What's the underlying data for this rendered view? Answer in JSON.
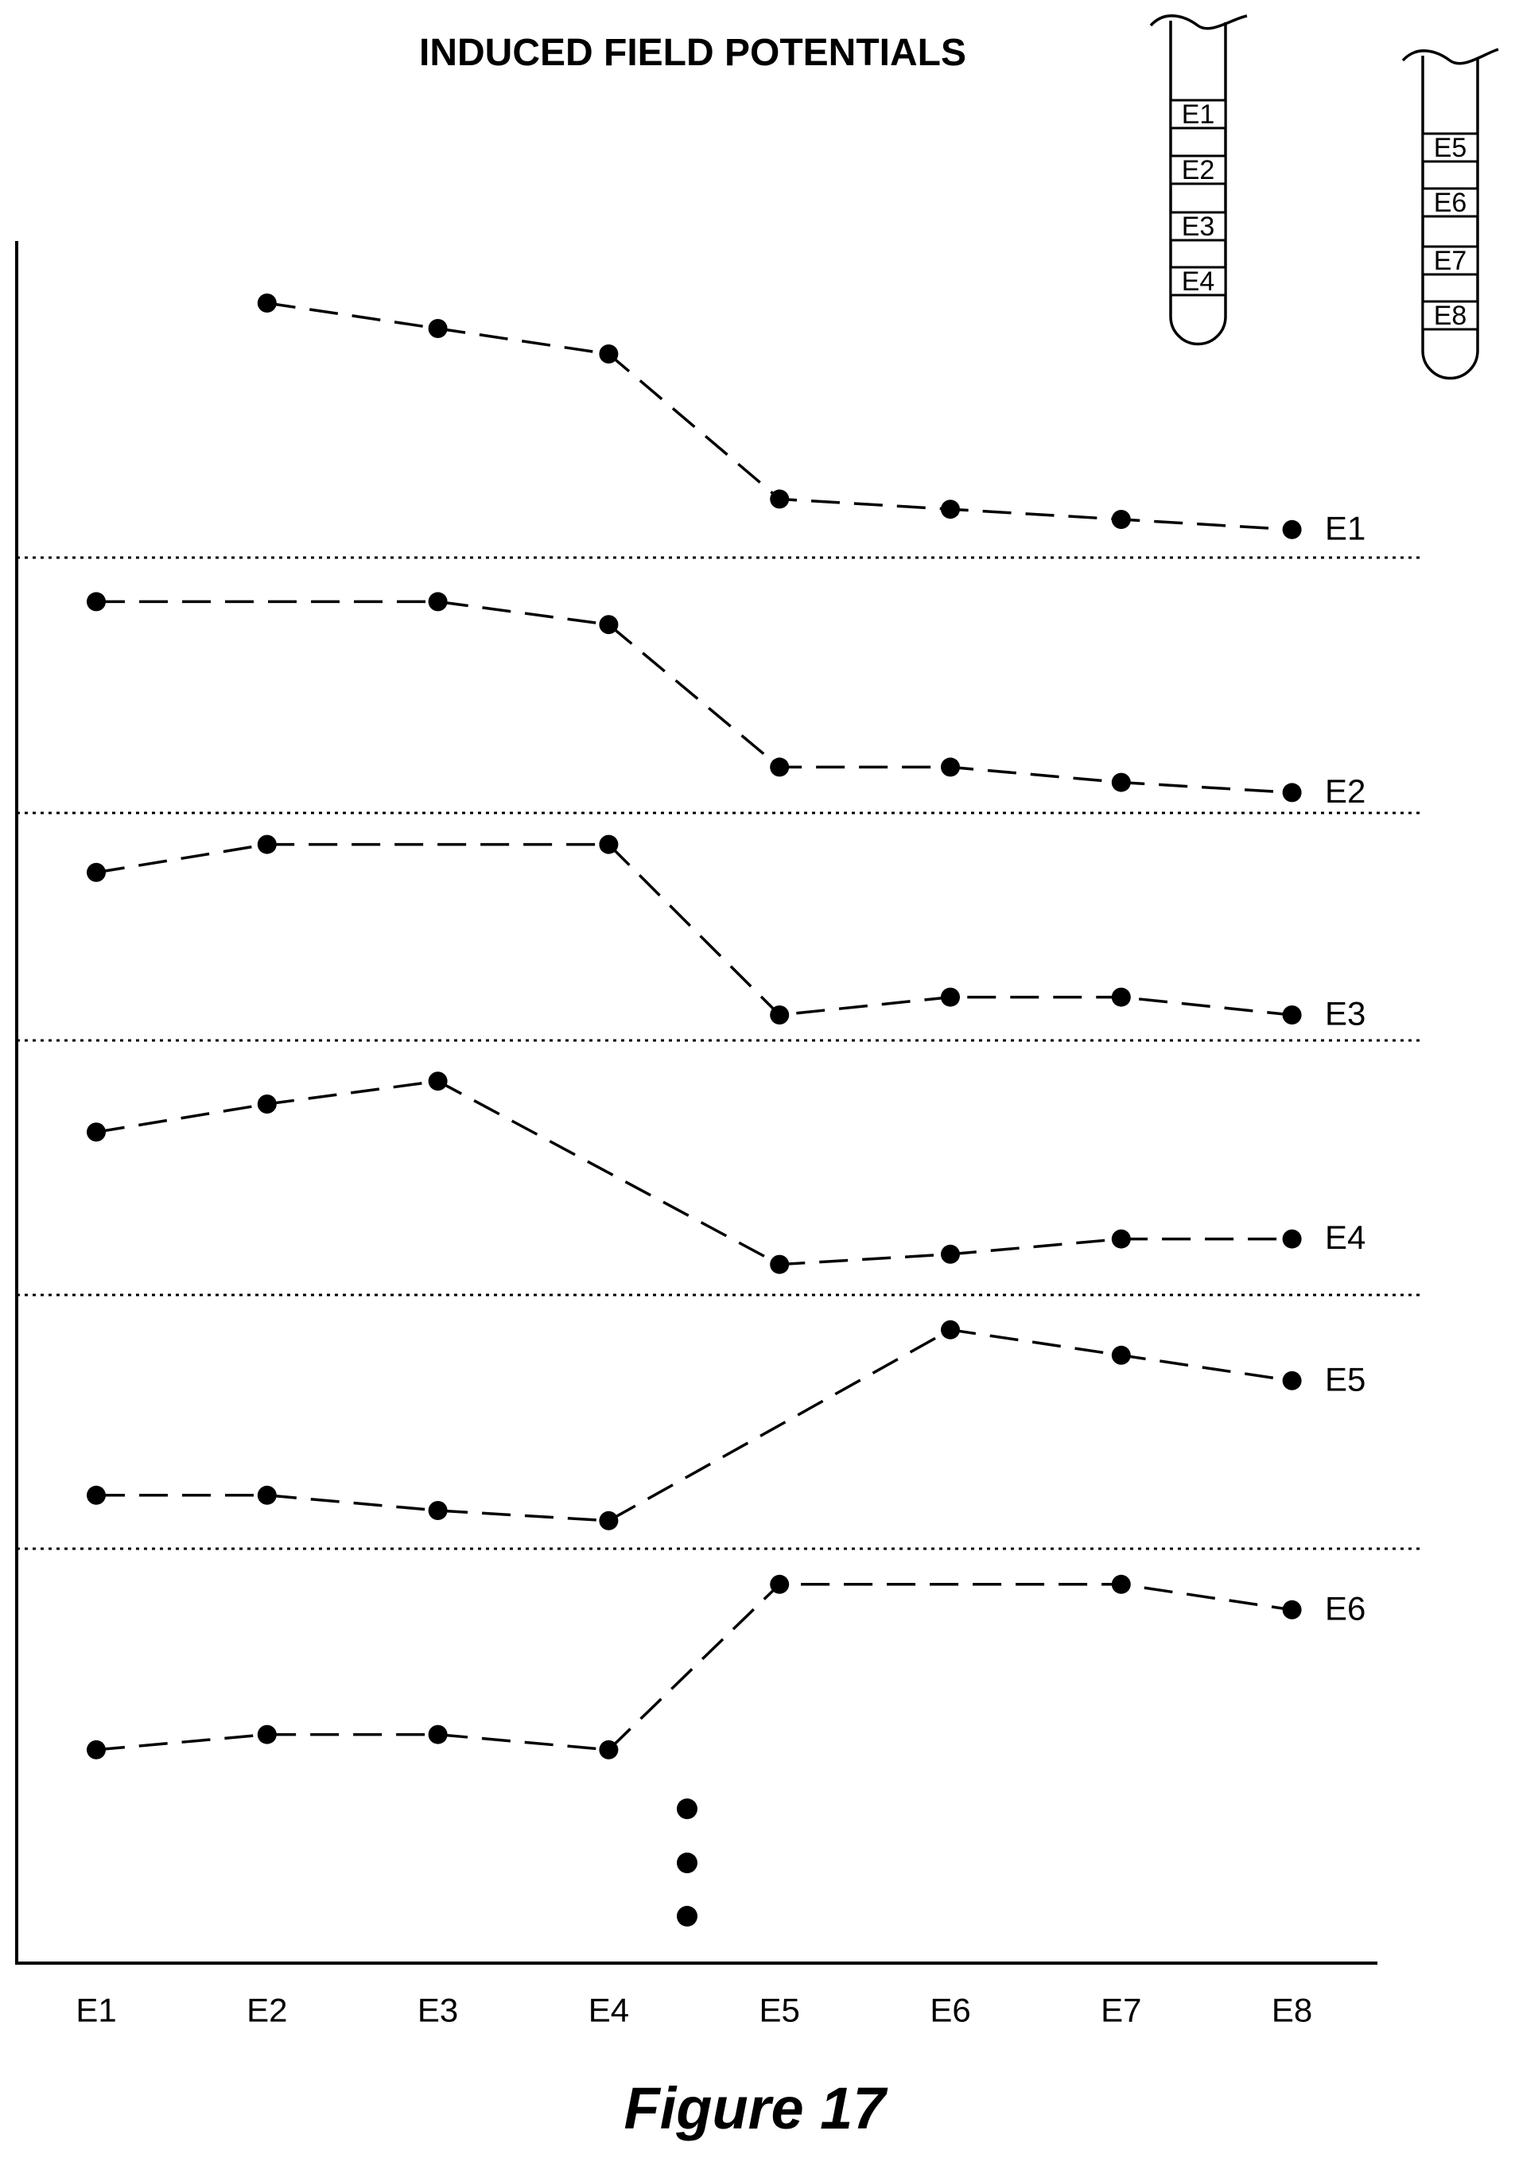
{
  "chart_data": {
    "type": "line",
    "title": "INDUCED FIELD POTENTIALS",
    "xlabel": "",
    "ylabel": "",
    "categories": [
      "E1",
      "E2",
      "E3",
      "E4",
      "E5",
      "E6",
      "E7",
      "E8"
    ],
    "series": [
      {
        "name": "E1",
        "values": [
          null,
          10.0,
          9.0,
          8.0,
          2.3,
          1.9,
          1.5,
          1.1
        ]
      },
      {
        "name": "E2",
        "values": [
          8.3,
          null,
          8.3,
          7.4,
          1.8,
          1.8,
          1.2,
          0.8
        ]
      },
      {
        "name": "E3",
        "values": [
          6.6,
          7.7,
          null,
          7.7,
          1.0,
          1.7,
          1.7,
          1.0
        ]
      },
      {
        "name": "E4",
        "values": [
          6.4,
          7.5,
          8.4,
          null,
          1.2,
          1.6,
          2.2,
          2.2
        ]
      },
      {
        "name": "E5",
        "values": [
          2.1,
          2.1,
          1.5,
          1.1,
          null,
          8.6,
          7.6,
          6.6
        ]
      },
      {
        "name": "E6",
        "values": [
          2.1,
          2.7,
          2.7,
          2.1,
          8.6,
          null,
          8.6,
          7.6
        ]
      }
    ],
    "stacked_panels": true,
    "grid": false,
    "panel_separators": "dotted",
    "series_labels": "right",
    "line_style": "dashed",
    "marker": "filled-circle",
    "continuation_marker": "vertical-ellipsis"
  },
  "leads": [
    {
      "contacts": [
        "E1",
        "E2",
        "E3",
        "E4"
      ]
    },
    {
      "contacts": [
        "E5",
        "E6",
        "E7",
        "E8"
      ]
    }
  ],
  "caption": "Figure 17",
  "colors": {
    "ink": "#000000",
    "background": "#ffffff"
  }
}
